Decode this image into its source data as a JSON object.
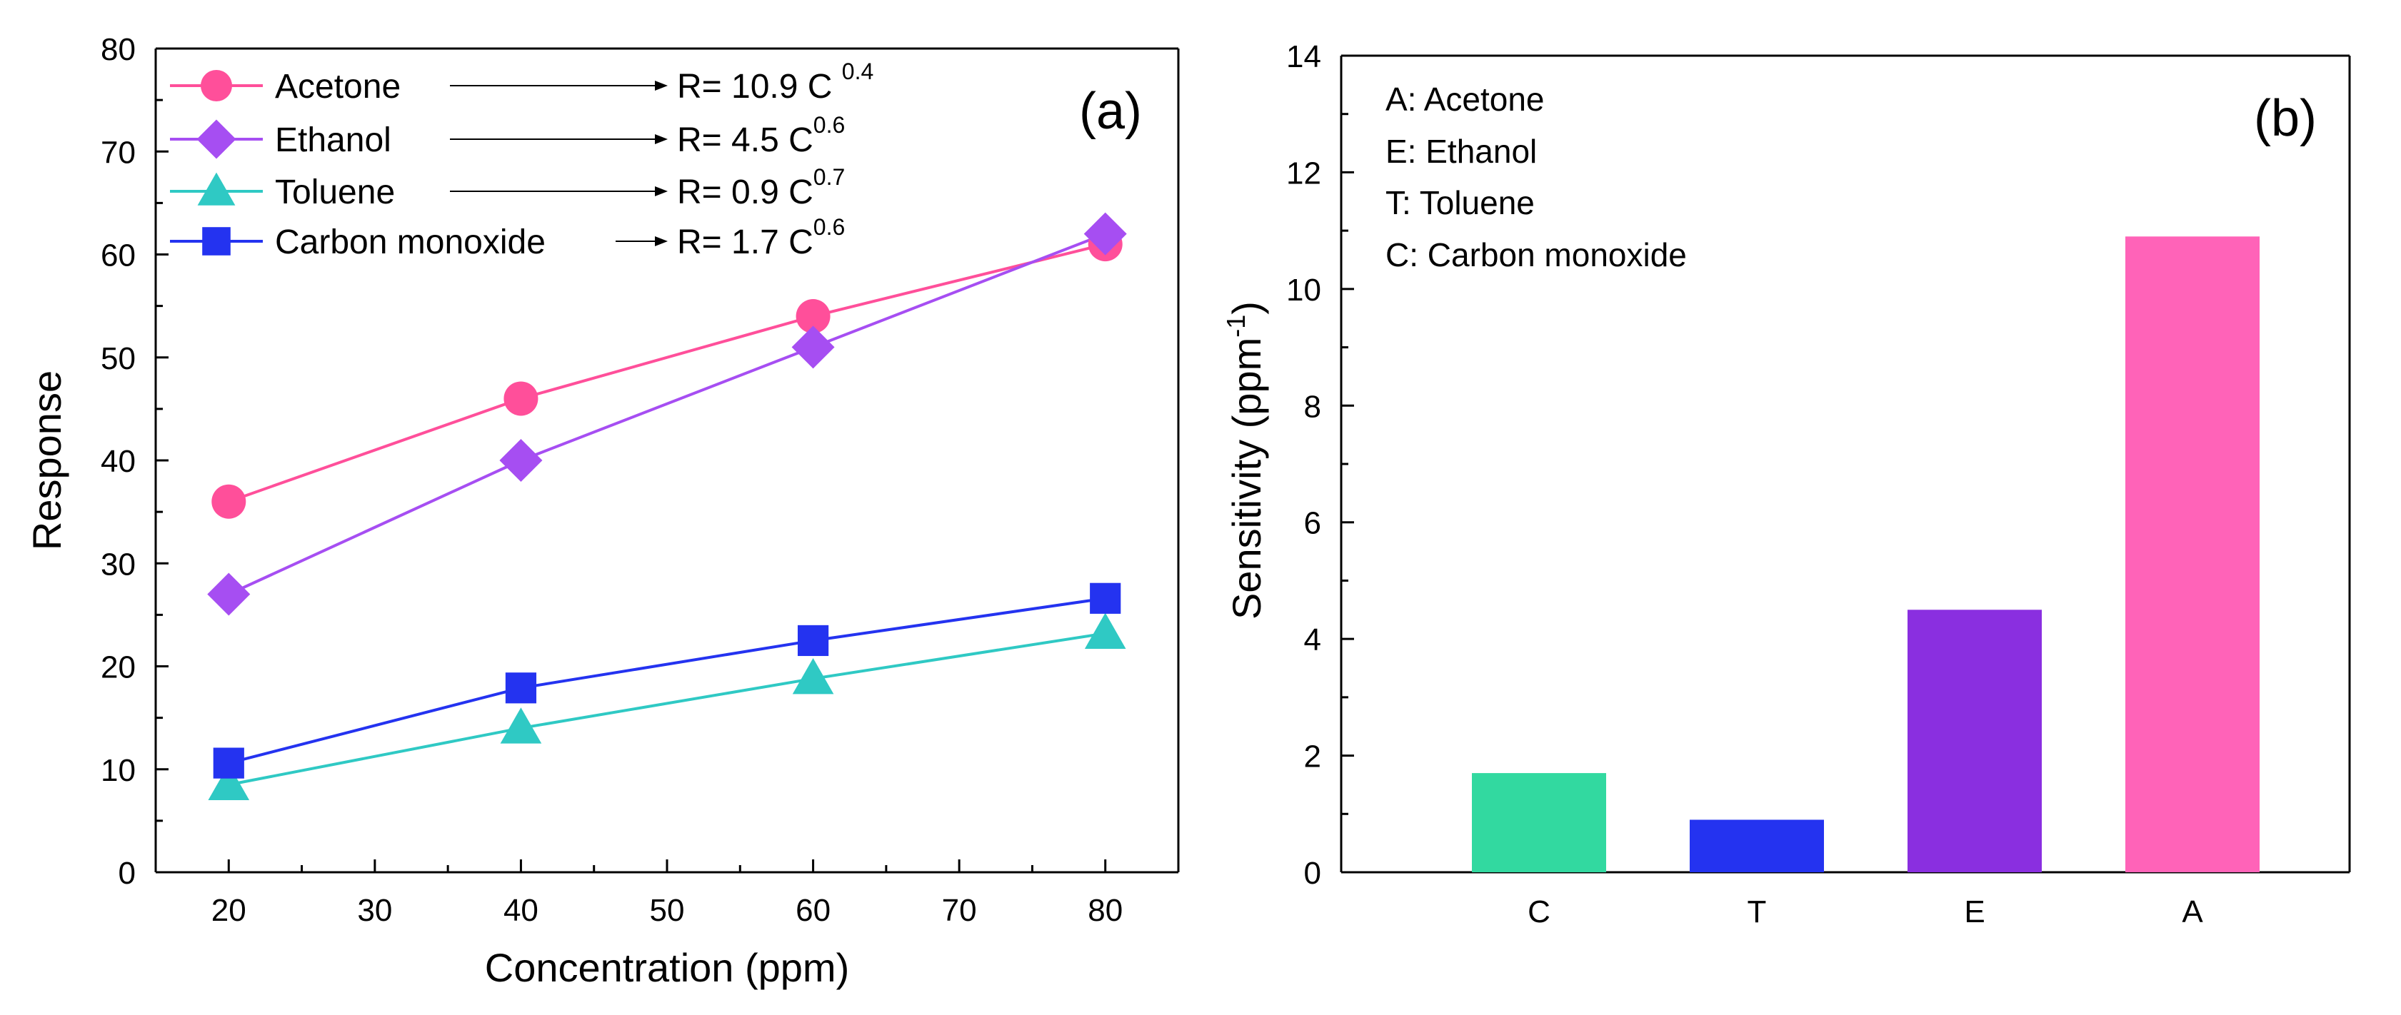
{
  "chart_data": [
    {
      "panel": "(a)",
      "type": "line",
      "xlabel": "Concentration (ppm)",
      "ylabel": "Response",
      "xlim": [
        15,
        85
      ],
      "ylim": [
        0,
        80
      ],
      "x_ticks": [
        20,
        30,
        40,
        50,
        60,
        70,
        80
      ],
      "y_ticks": [
        0,
        10,
        20,
        30,
        40,
        50,
        60,
        70,
        80
      ],
      "legend_placement": "top-left",
      "series": [
        {
          "name": "Acetone",
          "marker": "circle",
          "color": "#ff4f9a",
          "x": [
            20,
            40,
            60,
            80
          ],
          "y": [
            36,
            46,
            54,
            61
          ],
          "equation": {
            "base": "R= 10.9 C ",
            "exp": "0.4"
          }
        },
        {
          "name": "Ethanol",
          "marker": "diamond",
          "color": "#a64ef2",
          "x": [
            20,
            40,
            60,
            80
          ],
          "y": [
            27,
            40,
            51,
            62
          ],
          "equation": {
            "base": "R= 4.5 C",
            "exp": "0.6"
          }
        },
        {
          "name": "Toluene",
          "marker": "triangle",
          "color": "#2fc9c4",
          "x": [
            20,
            40,
            60,
            80
          ],
          "y": [
            8.5,
            14,
            18.8,
            23.2
          ],
          "equation": {
            "base": "R= 0.9 C",
            "exp": "0.7"
          }
        },
        {
          "name": "Carbon monoxide",
          "marker": "square",
          "color": "#2433f0",
          "x": [
            20,
            40,
            60,
            80
          ],
          "y": [
            10.6,
            17.9,
            22.5,
            26.6
          ],
          "equation": {
            "base": "R= 1.7 C",
            "exp": "0.6"
          }
        }
      ]
    },
    {
      "panel": "(b)",
      "type": "bar",
      "ylabel": {
        "prefix": "Sensitivity (ppm",
        "sup": "-1",
        "suffix": ")"
      },
      "categories": [
        "C",
        "T",
        "E",
        "A"
      ],
      "values": [
        1.7,
        0.9,
        4.5,
        10.9
      ],
      "colors": [
        "#32d9a0",
        "#2433f0",
        "#8a2fe0",
        "#ff63b8"
      ],
      "ylim": [
        0,
        14
      ],
      "y_ticks": [
        0,
        2,
        4,
        6,
        8,
        10,
        12,
        14
      ],
      "key": [
        "A: Acetone",
        "E: Ethanol",
        "T: Toluene",
        "C: Carbon monoxide"
      ]
    }
  ]
}
